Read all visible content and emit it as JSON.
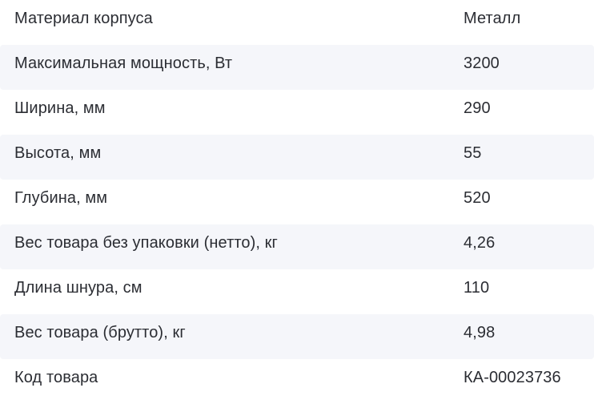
{
  "page": {
    "background_color": "#ffffff"
  },
  "spec_table": {
    "stripe_color": "#f5f6fa",
    "text_color": "#2b2d33",
    "rows": [
      {
        "label": "Материал корпуса",
        "value": "Металл"
      },
      {
        "label": "Максимальная мощность, Вт",
        "value": "3200"
      },
      {
        "label": "Ширина, мм",
        "value": "290"
      },
      {
        "label": "Высота, мм",
        "value": "55"
      },
      {
        "label": "Глубина, мм",
        "value": "520"
      },
      {
        "label": "Вес товара без упаковки (нетто), кг",
        "value": "4,26"
      },
      {
        "label": "Длина шнура, см",
        "value": "110"
      },
      {
        "label": "Вес товара (брутто), кг",
        "value": "4,98"
      },
      {
        "label": "Код товара",
        "value": "КА-00023736"
      }
    ]
  }
}
